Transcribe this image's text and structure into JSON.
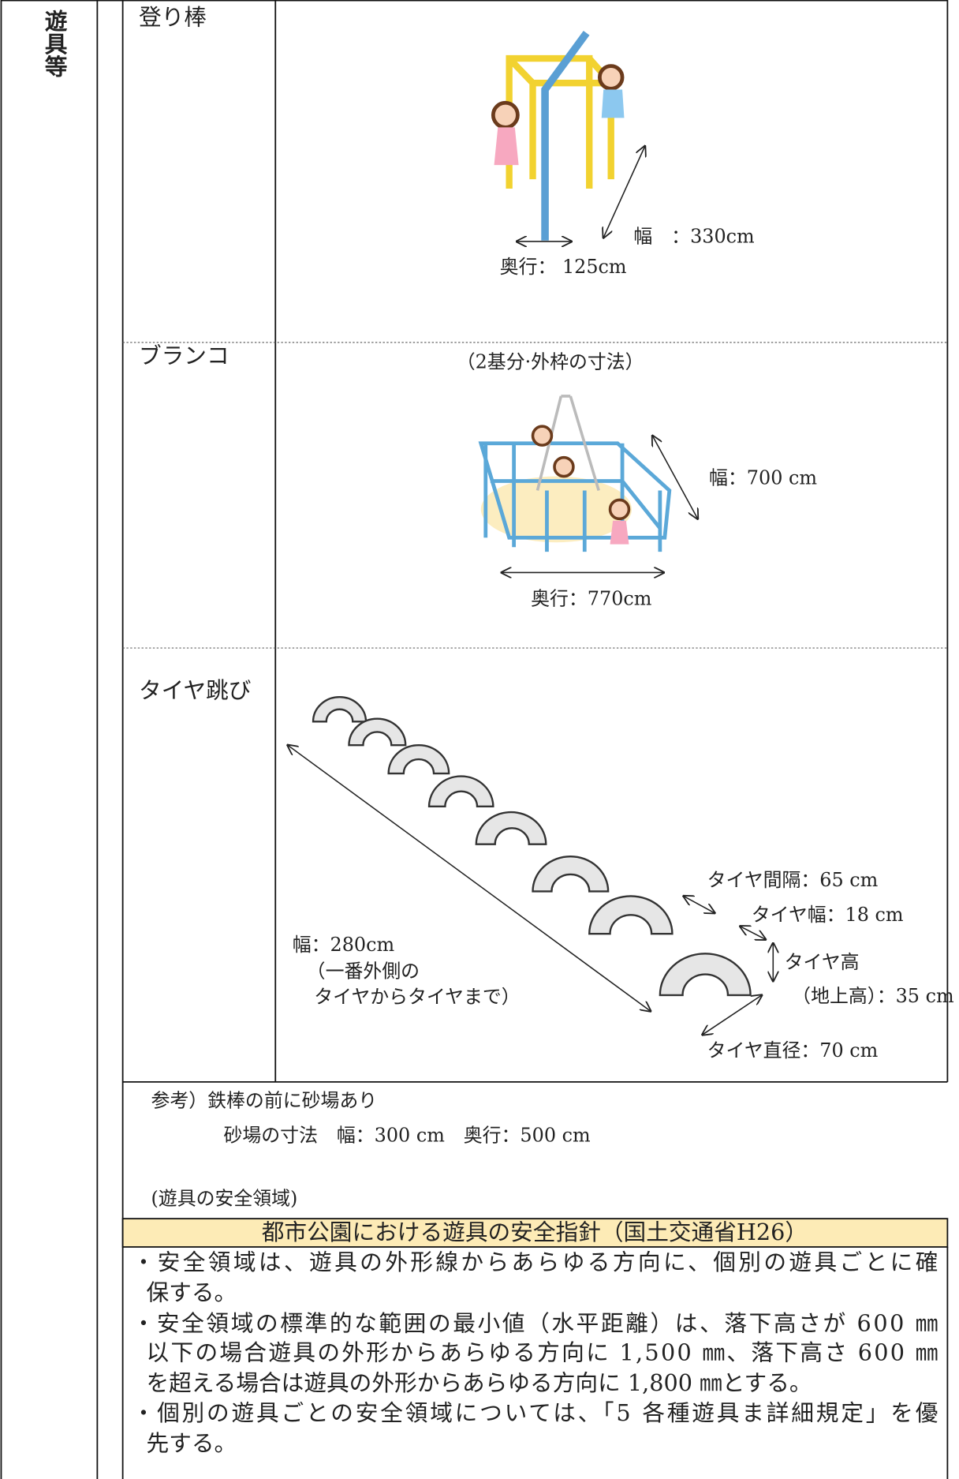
{
  "category": "遊具等",
  "items": [
    {
      "name": "登り棒",
      "labels": [
        "幅　：330cm",
        "奥行： 125cm"
      ]
    },
    {
      "name": "ブランコ",
      "caption": "（2基分·外枠の寸法）",
      "labels": [
        "幅：700 cm",
        "奥行：770cm"
      ]
    },
    {
      "name": "タイヤ跳び",
      "labels": [
        "タイヤ間隔：65 cm",
        "タイヤ幅：18 cm",
        "タイヤ高",
        "（地上高）：35 cm",
        "タイヤ直径：70 cm",
        "幅：280cm",
        "（一番外側の",
        "タイヤからタイヤまで）"
      ]
    }
  ],
  "note": [
    "参考）鉄棒の前に砂場あり",
    "砂場の寸法　幅：300 cm　奥行：500 cm"
  ],
  "safety": {
    "heading": "(遊具の安全領域)",
    "box_title": "都市公園における遊具の安全指針（国土交通省H26）",
    "lines": [
      "・安全領域は、遊具の外形線からあらゆる方向に、個別の遊具ごとに確",
      "保する。",
      "・安全領域の標準的な範囲の最小値（水平距離）は、落下高さが 600 ㎜",
      "以下の場合遊具の外形からあらゆる方向に 1,500 ㎜、落下高さ 600 ㎜",
      "を超える場合は遊具の外形からあらゆる方向に 1,800 ㎜とする。",
      "・個別の遊具ごとの安全領域については、「5 各種遊具ま詳細規定」を優",
      "先する。"
    ]
  }
}
